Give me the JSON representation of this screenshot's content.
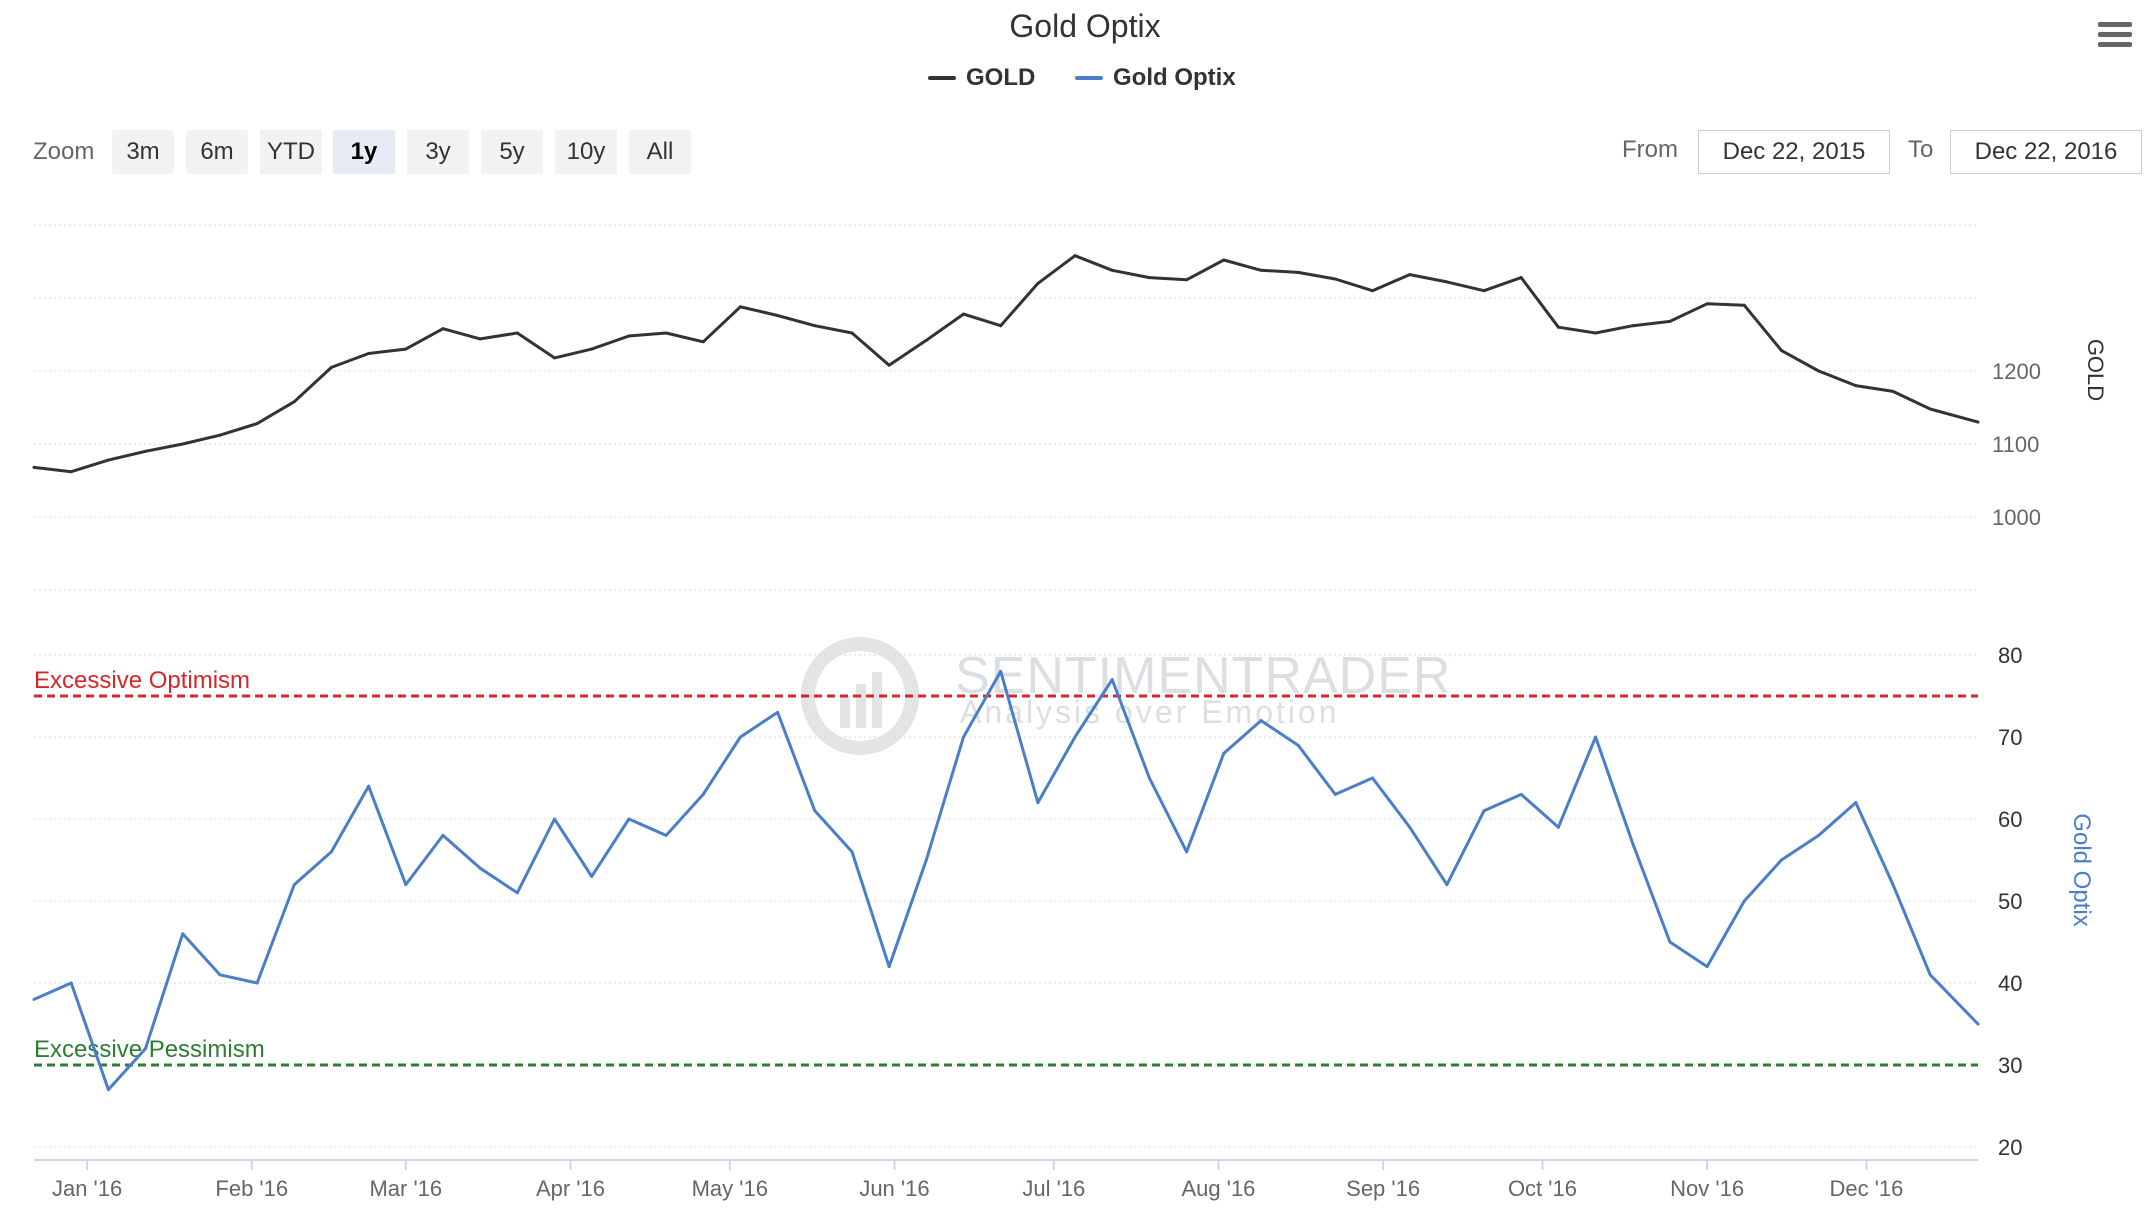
{
  "title": "Gold Optix",
  "legend": [
    {
      "name": "GOLD",
      "color": "#333333"
    },
    {
      "name": "Gold Optix",
      "color": "#4a7ec8"
    }
  ],
  "zoom": {
    "label": "Zoom",
    "buttons": [
      "3m",
      "6m",
      "YTD",
      "1y",
      "3y",
      "5y",
      "10y",
      "All"
    ],
    "selected": "1y"
  },
  "range": {
    "from_label": "From",
    "from_value": "Dec 22, 2015",
    "to_label": "To",
    "to_value": "Dec 22, 2016"
  },
  "watermark": {
    "name": "SENTIMENTRADER",
    "tagline": "Analysis over Emotion"
  },
  "colors": {
    "gold": "#333333",
    "optix": "#4a7ec8",
    "optimism": "#d62728",
    "pessimism": "#2e7d32",
    "grid": "#d8d8d8"
  },
  "chart_data": {
    "type": "line",
    "x_axis": {
      "start": "2015-12-22",
      "end": "2016-12-22",
      "tick_labels": [
        "Jan '16",
        "Feb '16",
        "Mar '16",
        "Apr '16",
        "May '16",
        "Jun '16",
        "Jul '16",
        "Aug '16",
        "Sep '16",
        "Oct '16",
        "Nov '16",
        "Dec '16"
      ],
      "tick_dates": [
        "2016-01-01",
        "2016-02-01",
        "2016-03-01",
        "2016-04-01",
        "2016-05-01",
        "2016-06-01",
        "2016-07-01",
        "2016-08-01",
        "2016-09-01",
        "2016-10-01",
        "2016-11-01",
        "2016-12-01"
      ]
    },
    "panes": [
      {
        "series": {
          "name": "GOLD",
          "x": [
            "2015-12-22",
            "2015-12-29",
            "2016-01-05",
            "2016-01-12",
            "2016-01-19",
            "2016-01-26",
            "2016-02-02",
            "2016-02-09",
            "2016-02-16",
            "2016-02-23",
            "2016-03-01",
            "2016-03-08",
            "2016-03-15",
            "2016-03-22",
            "2016-03-29",
            "2016-04-05",
            "2016-04-12",
            "2016-04-19",
            "2016-04-26",
            "2016-05-03",
            "2016-05-10",
            "2016-05-17",
            "2016-05-24",
            "2016-05-31",
            "2016-06-07",
            "2016-06-14",
            "2016-06-21",
            "2016-06-28",
            "2016-07-05",
            "2016-07-12",
            "2016-07-19",
            "2016-07-26",
            "2016-08-02",
            "2016-08-09",
            "2016-08-16",
            "2016-08-23",
            "2016-08-30",
            "2016-09-06",
            "2016-09-13",
            "2016-09-20",
            "2016-09-27",
            "2016-10-04",
            "2016-10-11",
            "2016-10-18",
            "2016-10-25",
            "2016-11-01",
            "2016-11-08",
            "2016-11-15",
            "2016-11-22",
            "2016-11-29",
            "2016-12-06",
            "2016-12-13",
            "2016-12-22"
          ],
          "y": [
            1068,
            1062,
            1078,
            1090,
            1100,
            1112,
            1128,
            1158,
            1205,
            1224,
            1230,
            1258,
            1244,
            1252,
            1218,
            1230,
            1248,
            1252,
            1240,
            1288,
            1276,
            1262,
            1252,
            1208,
            1242,
            1278,
            1262,
            1320,
            1358,
            1338,
            1328,
            1325,
            1352,
            1338,
            1335,
            1326,
            1310,
            1332,
            1322,
            1310,
            1328,
            1260,
            1252,
            1262,
            1268,
            1292,
            1290,
            1228,
            1200,
            1180,
            1172,
            1148,
            1130
          ]
        },
        "ylabel": "GOLD",
        "yticks": [
          1000,
          1100,
          1200
        ],
        "ylim": [
          900,
          1400
        ]
      },
      {
        "series": {
          "name": "Gold Optix",
          "x": [
            "2015-12-22",
            "2015-12-29",
            "2016-01-05",
            "2016-01-12",
            "2016-01-19",
            "2016-01-26",
            "2016-02-02",
            "2016-02-09",
            "2016-02-16",
            "2016-02-23",
            "2016-03-01",
            "2016-03-08",
            "2016-03-15",
            "2016-03-22",
            "2016-03-29",
            "2016-04-05",
            "2016-04-12",
            "2016-04-19",
            "2016-04-26",
            "2016-05-03",
            "2016-05-10",
            "2016-05-17",
            "2016-05-24",
            "2016-05-31",
            "2016-06-07",
            "2016-06-14",
            "2016-06-21",
            "2016-06-28",
            "2016-07-05",
            "2016-07-12",
            "2016-07-19",
            "2016-07-26",
            "2016-08-02",
            "2016-08-09",
            "2016-08-16",
            "2016-08-23",
            "2016-08-30",
            "2016-09-06",
            "2016-09-13",
            "2016-09-20",
            "2016-09-27",
            "2016-10-04",
            "2016-10-11",
            "2016-10-18",
            "2016-10-25",
            "2016-11-01",
            "2016-11-08",
            "2016-11-15",
            "2016-11-22",
            "2016-11-29",
            "2016-12-06",
            "2016-12-13",
            "2016-12-22"
          ],
          "y": [
            38,
            40,
            27,
            32,
            46,
            41,
            40,
            52,
            56,
            64,
            52,
            58,
            54,
            51,
            60,
            53,
            60,
            58,
            63,
            70,
            73,
            61,
            56,
            42,
            55,
            70,
            78,
            62,
            70,
            77,
            65,
            56,
            68,
            72,
            69,
            63,
            65,
            59,
            52,
            61,
            63,
            59,
            70,
            57,
            45,
            42,
            50,
            55,
            58,
            62,
            52,
            41,
            35
          ]
        },
        "ylabel": "Gold Optix",
        "yticks": [
          20,
          30,
          40,
          50,
          60,
          70,
          80
        ],
        "ylim": [
          20,
          80
        ],
        "reference_lines": [
          {
            "label": "Excessive Optimism",
            "value": 75,
            "color": "#d62728"
          },
          {
            "label": "Excessive Pessimism",
            "value": 30,
            "color": "#2e7d32"
          }
        ]
      }
    ],
    "grid": true,
    "legend_position": "top-center"
  }
}
